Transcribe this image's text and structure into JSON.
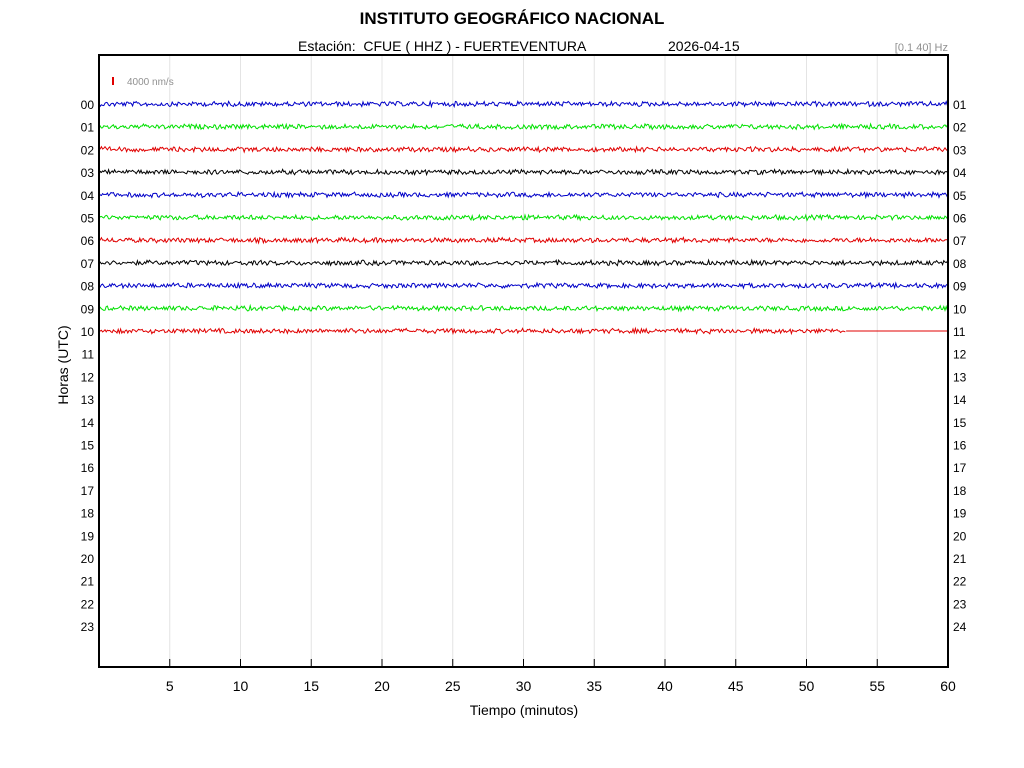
{
  "header": {
    "title": "INSTITUTO GEOGRÁFICO NACIONAL",
    "station": "Estación:  CFUE ( HHZ ) - FUERTEVENTURA",
    "date": "2026-04-15",
    "filter": "[0.1 40] Hz"
  },
  "chart_data": {
    "type": "line",
    "title": "INSTITUTO GEOGRÁFICO NACIONAL",
    "xlabel": "Tiempo (minutos)",
    "ylabel": "Horas (UTC)",
    "xlim": [
      0,
      60
    ],
    "x_ticks": [
      "5",
      "10",
      "15",
      "20",
      "25",
      "30",
      "35",
      "40",
      "45",
      "50",
      "55",
      "60"
    ],
    "y_ticks_left": [
      "00",
      "01",
      "02",
      "03",
      "04",
      "05",
      "06",
      "07",
      "08",
      "09",
      "10",
      "11",
      "12",
      "13",
      "14",
      "15",
      "16",
      "17",
      "18",
      "19",
      "20",
      "21",
      "22",
      "23"
    ],
    "y_ticks_right": [
      "01",
      "02",
      "03",
      "04",
      "05",
      "06",
      "07",
      "08",
      "09",
      "10",
      "11",
      "12",
      "13",
      "14",
      "15",
      "16",
      "17",
      "18",
      "19",
      "20",
      "21",
      "22",
      "23",
      "24"
    ],
    "scale_label": "4000 nm/s",
    "scale_color": "#e00000",
    "grid": "vertical",
    "color_cycle": [
      "#0000c8",
      "#00e000",
      "#e00000",
      "#000000"
    ],
    "series": [
      {
        "hour": "00",
        "color": "#0000c8",
        "recorded_minutes": [
          0,
          60
        ]
      },
      {
        "hour": "01",
        "color": "#00e000",
        "recorded_minutes": [
          0,
          60
        ]
      },
      {
        "hour": "02",
        "color": "#e00000",
        "recorded_minutes": [
          0,
          60
        ]
      },
      {
        "hour": "03",
        "color": "#000000",
        "recorded_minutes": [
          0,
          60
        ]
      },
      {
        "hour": "04",
        "color": "#0000c8",
        "recorded_minutes": [
          0,
          60
        ]
      },
      {
        "hour": "05",
        "color": "#00e000",
        "recorded_minutes": [
          0,
          60
        ]
      },
      {
        "hour": "06",
        "color": "#e00000",
        "recorded_minutes": [
          0,
          60
        ]
      },
      {
        "hour": "07",
        "color": "#000000",
        "recorded_minutes": [
          0,
          60
        ]
      },
      {
        "hour": "08",
        "color": "#0000c8",
        "recorded_minutes": [
          0,
          60
        ]
      },
      {
        "hour": "09",
        "color": "#00e000",
        "recorded_minutes": [
          0,
          60
        ]
      },
      {
        "hour": "10",
        "color": "#e00000",
        "recorded_minutes": [
          0,
          52.8
        ]
      }
    ]
  }
}
